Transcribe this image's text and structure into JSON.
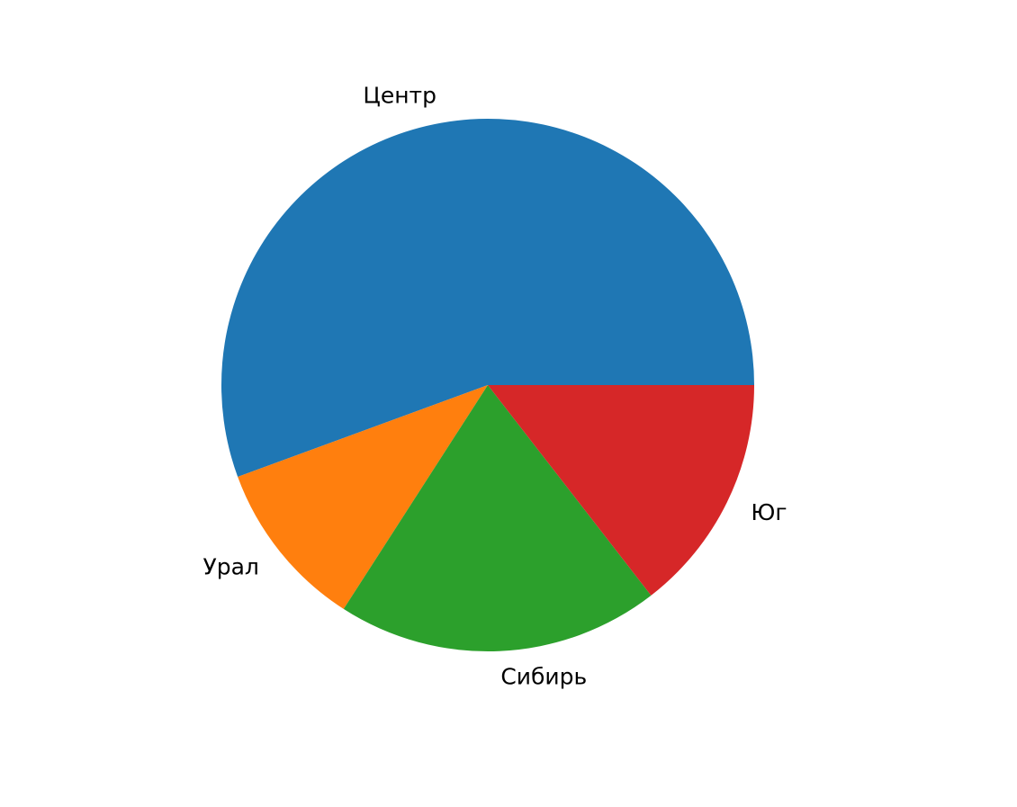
{
  "chart_data": {
    "type": "pie",
    "title": "",
    "labels": [
      "Центр",
      "Урал",
      "Сибирь",
      "Юг"
    ],
    "values": [
      55.6,
      10.3,
      19.6,
      14.5
    ],
    "colors": [
      "#1f77b4",
      "#ff7f0e",
      "#2ca02c",
      "#d62728"
    ],
    "start_angle_deg": 0,
    "direction": "counterclockwise",
    "legend": "none"
  }
}
